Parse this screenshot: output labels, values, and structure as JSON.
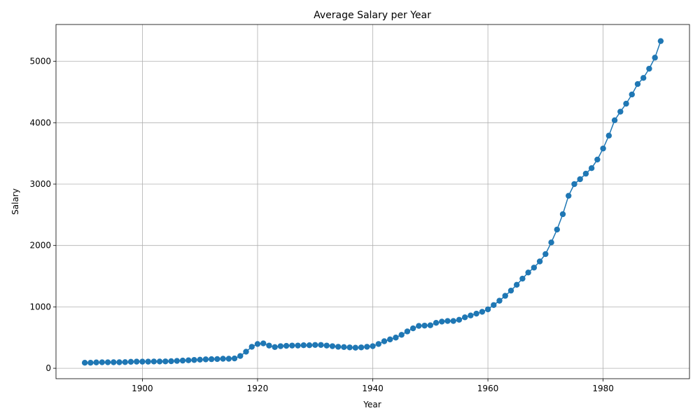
{
  "chart_data": {
    "type": "line",
    "title": "Average Salary per Year",
    "xlabel": "Year",
    "ylabel": "Salary",
    "xlim": [
      1885,
      1995
    ],
    "ylim": [
      -170,
      5600
    ],
    "xticks": [
      1900,
      1920,
      1940,
      1960,
      1980
    ],
    "yticks": [
      0,
      1000,
      2000,
      3000,
      4000,
      5000
    ],
    "grid": true,
    "color": "#1f77b4",
    "marker": "circle",
    "series": [
      {
        "x": [
          1890,
          1891,
          1892,
          1893,
          1894,
          1895,
          1896,
          1897,
          1898,
          1899,
          1900,
          1901,
          1902,
          1903,
          1904,
          1905,
          1906,
          1907,
          1908,
          1909,
          1910,
          1911,
          1912,
          1913,
          1914,
          1915,
          1916,
          1917,
          1918,
          1919,
          1920,
          1921,
          1922,
          1923,
          1924,
          1925,
          1926,
          1927,
          1928,
          1929,
          1930,
          1931,
          1932,
          1933,
          1934,
          1935,
          1936,
          1937,
          1938,
          1939,
          1940,
          1941,
          1942,
          1943,
          1944,
          1945,
          1946,
          1947,
          1948,
          1949,
          1950,
          1951,
          1952,
          1953,
          1954,
          1955,
          1956,
          1957,
          1958,
          1959,
          1960,
          1961,
          1962,
          1963,
          1964,
          1965,
          1966,
          1967,
          1968,
          1969,
          1970,
          1971,
          1972,
          1973,
          1974,
          1975,
          1976,
          1977,
          1978,
          1979,
          1980,
          1981,
          1982,
          1983,
          1984,
          1985,
          1986,
          1987,
          1988,
          1989,
          1990
        ],
        "values": [
          90,
          90,
          95,
          97,
          97,
          98,
          98,
          100,
          105,
          108,
          108,
          108,
          110,
          110,
          112,
          115,
          120,
          125,
          130,
          135,
          140,
          145,
          148,
          150,
          155,
          155,
          160,
          200,
          270,
          350,
          395,
          405,
          370,
          345,
          360,
          365,
          370,
          370,
          375,
          375,
          380,
          380,
          370,
          360,
          350,
          345,
          340,
          335,
          340,
          350,
          360,
          395,
          440,
          470,
          500,
          545,
          600,
          650,
          690,
          695,
          700,
          740,
          760,
          770,
          770,
          790,
          830,
          860,
          890,
          920,
          960,
          1030,
          1100,
          1180,
          1265,
          1360,
          1460,
          1560,
          1640,
          1740,
          1860,
          2050,
          2260,
          2510,
          2810,
          3000,
          3080,
          3170,
          3260,
          3400,
          3580,
          3790,
          4040,
          4180,
          4310,
          4460,
          4630,
          4730,
          4880,
          5060,
          5330
        ]
      }
    ]
  }
}
